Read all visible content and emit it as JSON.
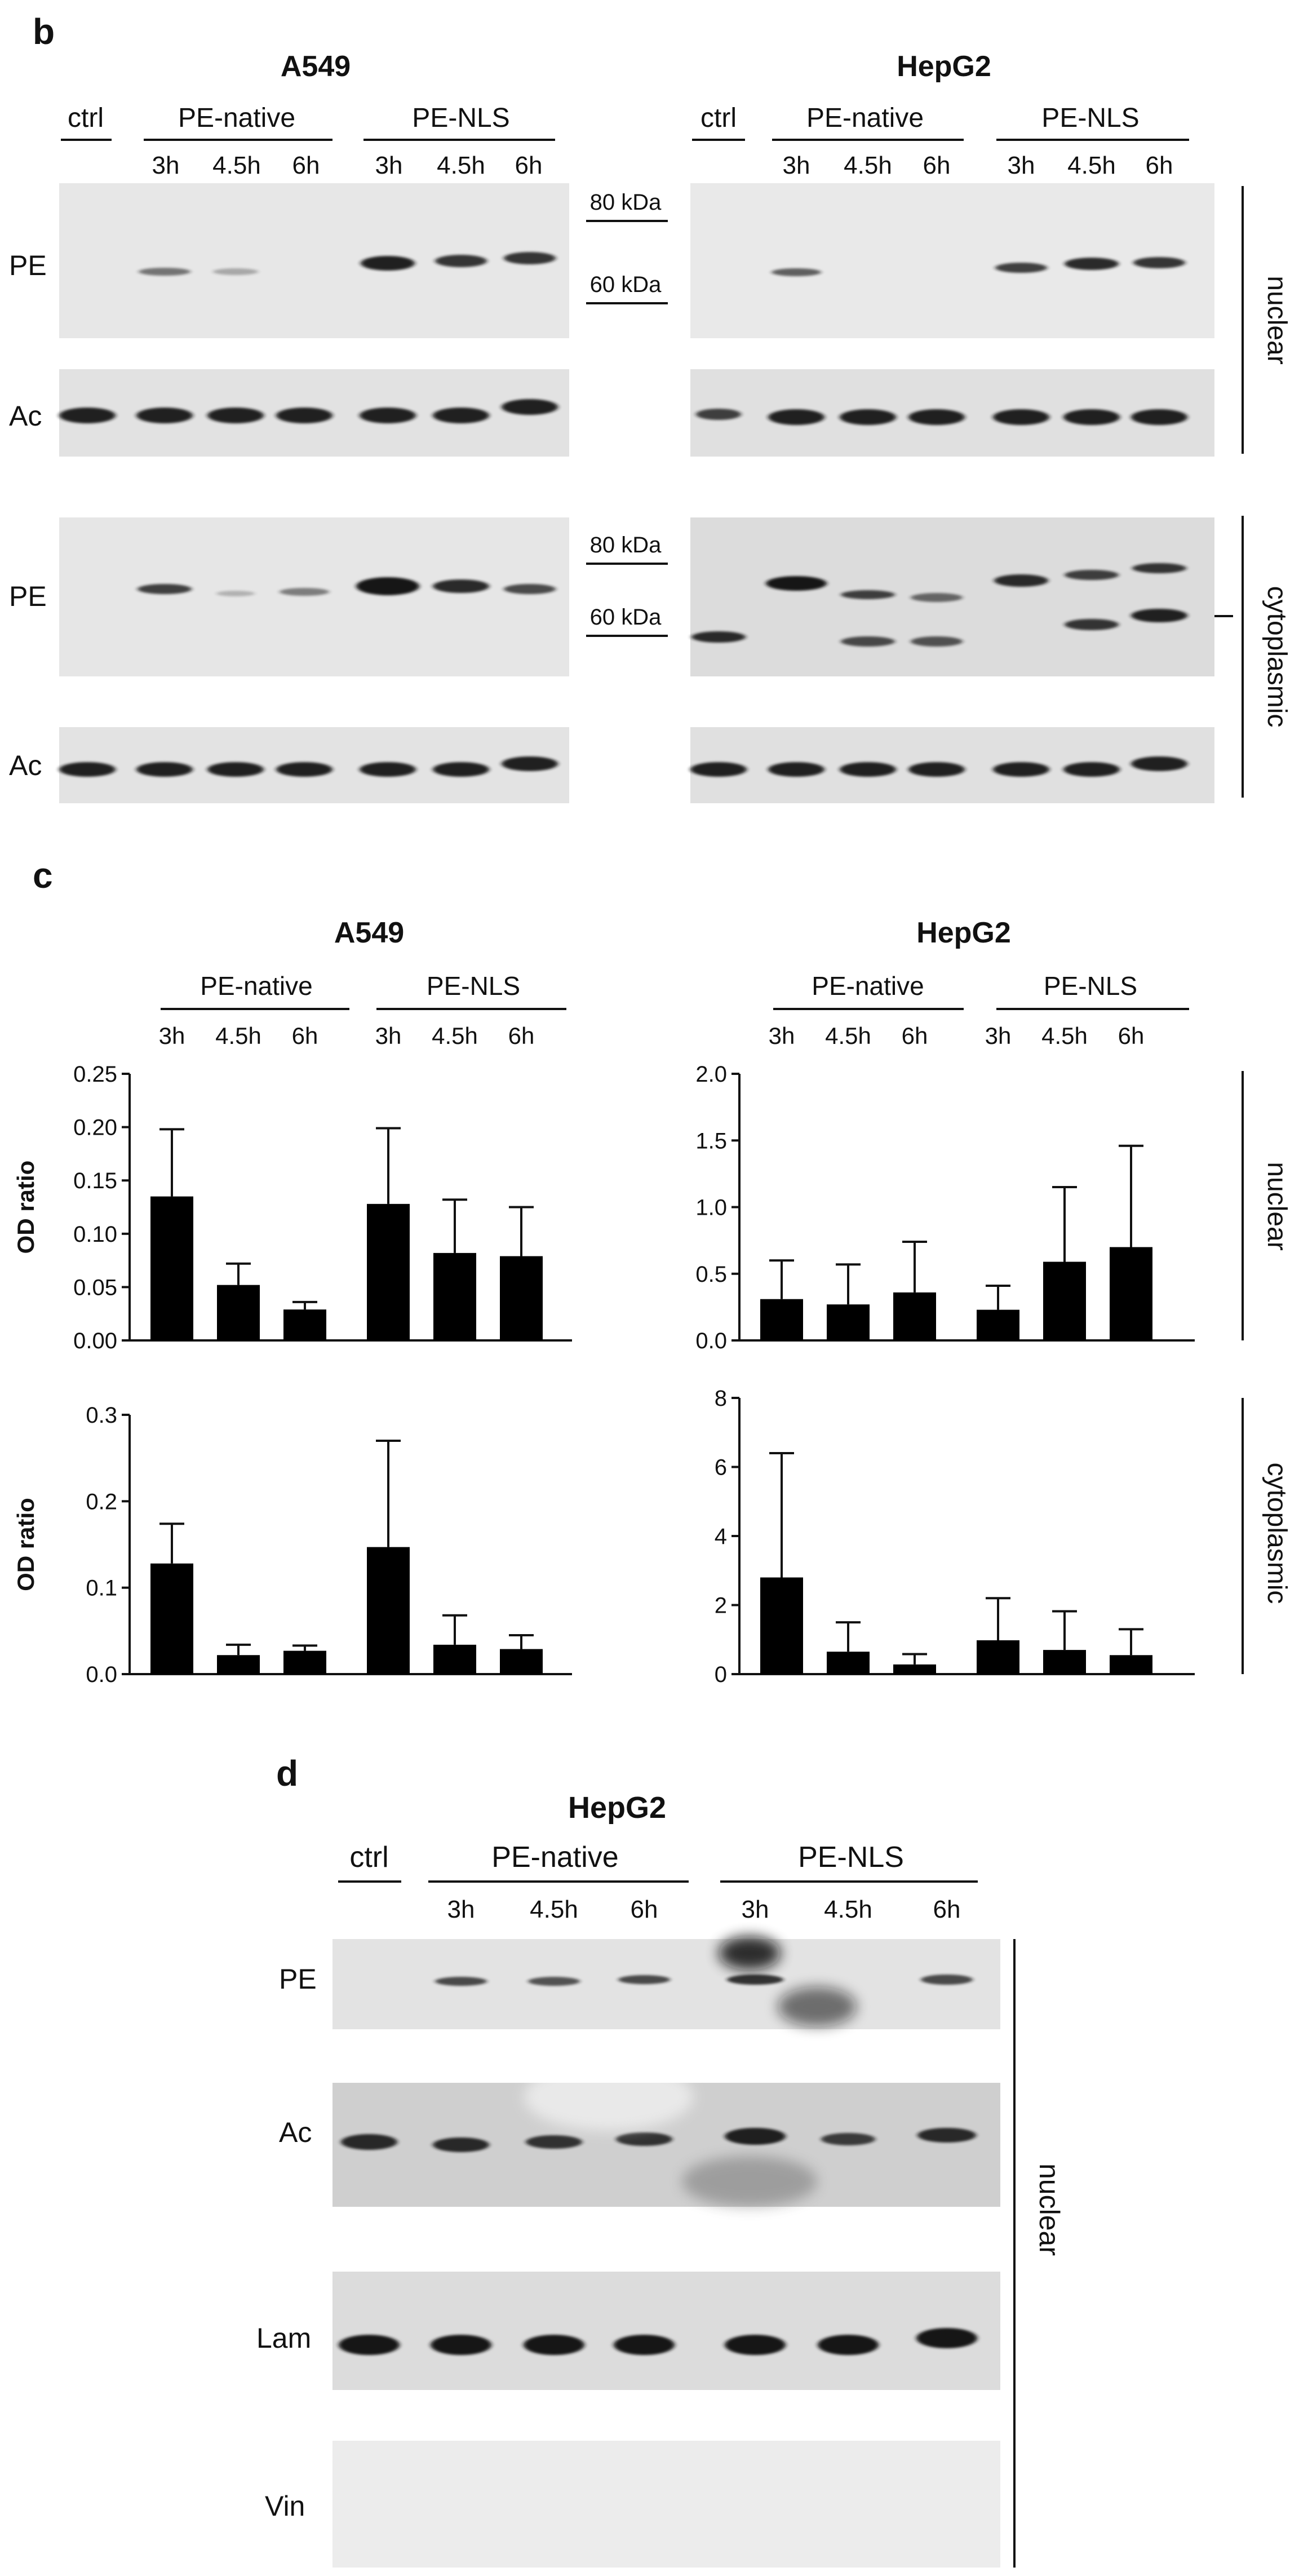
{
  "panels": {
    "b": {
      "letter": "b",
      "a549": "A549",
      "hepg2": "HepG2",
      "ctrl": "ctrl",
      "group1": "PE-native",
      "group2": "PE-NLS",
      "times": [
        "3h",
        "4.5h",
        "6h"
      ],
      "rows": [
        "PE",
        "Ac"
      ],
      "mw_80": "80 kDa",
      "mw_60": "60 kDa",
      "nuclear": "nuclear",
      "cytoplasmic": "cytoplasmic"
    },
    "c": {
      "letter": "c",
      "a549": "A549",
      "hepg2": "HepG2",
      "group1": "PE-native",
      "group2": "PE-NLS",
      "times": [
        "3h",
        "4.5h",
        "6h"
      ],
      "ylabel": "OD ratio",
      "nuclear": "nuclear",
      "cytoplasmic": "cytoplasmic"
    },
    "d": {
      "letter": "d",
      "title": "HepG2",
      "ctrl": "ctrl",
      "group1": "PE-native",
      "group2": "PE-NLS",
      "times": [
        "3h",
        "4.5h",
        "6h"
      ],
      "rows": [
        "PE",
        "Ac",
        "Lam",
        "Vin"
      ],
      "nuclear": "nuclear"
    }
  },
  "colors": {
    "bar": "#000000",
    "axis": "#111111",
    "blot_bg": "#e6e6e6",
    "band": "#1a1a1a"
  },
  "chart_data": [
    {
      "type": "bar",
      "title": "",
      "xlabel": "",
      "ylabel": "OD ratio",
      "ylim": [
        0,
        0.25
      ],
      "yticks": [
        "0.00",
        "0.05",
        "0.10",
        "0.15",
        "0.20",
        "0.25"
      ],
      "categories": [
        "3h",
        "4.5h",
        "6h",
        "3h",
        "4.5h",
        "6h"
      ],
      "values": [
        0.135,
        0.052,
        0.029,
        0.128,
        0.082,
        0.079
      ],
      "errors": [
        0.063,
        0.02,
        0.007,
        0.071,
        0.05,
        0.046
      ]
    },
    {
      "type": "bar",
      "title": "",
      "xlabel": "",
      "ylabel": "",
      "ylim": [
        0,
        2.0
      ],
      "yticks": [
        "0.0",
        "0.5",
        "1.0",
        "1.5",
        "2.0"
      ],
      "categories": [
        "3h",
        "4.5h",
        "6h",
        "3h",
        "4.5h",
        "6h"
      ],
      "values": [
        0.31,
        0.27,
        0.36,
        0.23,
        0.59,
        0.7
      ],
      "errors": [
        0.29,
        0.3,
        0.38,
        0.18,
        0.56,
        0.76
      ]
    },
    {
      "type": "bar",
      "title": "",
      "xlabel": "",
      "ylabel": "OD ratio",
      "ylim": [
        0,
        0.3
      ],
      "yticks": [
        "0.0",
        "0.1",
        "0.2",
        "0.3"
      ],
      "categories": [
        "3h",
        "4.5h",
        "6h",
        "3h",
        "4.5h",
        "6h"
      ],
      "values": [
        0.128,
        0.022,
        0.027,
        0.147,
        0.034,
        0.029
      ],
      "errors": [
        0.046,
        0.012,
        0.006,
        0.123,
        0.034,
        0.016
      ]
    },
    {
      "type": "bar",
      "title": "",
      "xlabel": "",
      "ylabel": "",
      "ylim": [
        0,
        8
      ],
      "yticks": [
        "0",
        "2",
        "4",
        "6",
        "8"
      ],
      "categories": [
        "3h",
        "4.5h",
        "6h",
        "3h",
        "4.5h",
        "6h"
      ],
      "values": [
        2.8,
        0.65,
        0.28,
        0.98,
        0.7,
        0.55
      ],
      "errors": [
        3.6,
        0.85,
        0.3,
        1.22,
        1.12,
        0.75
      ]
    }
  ]
}
